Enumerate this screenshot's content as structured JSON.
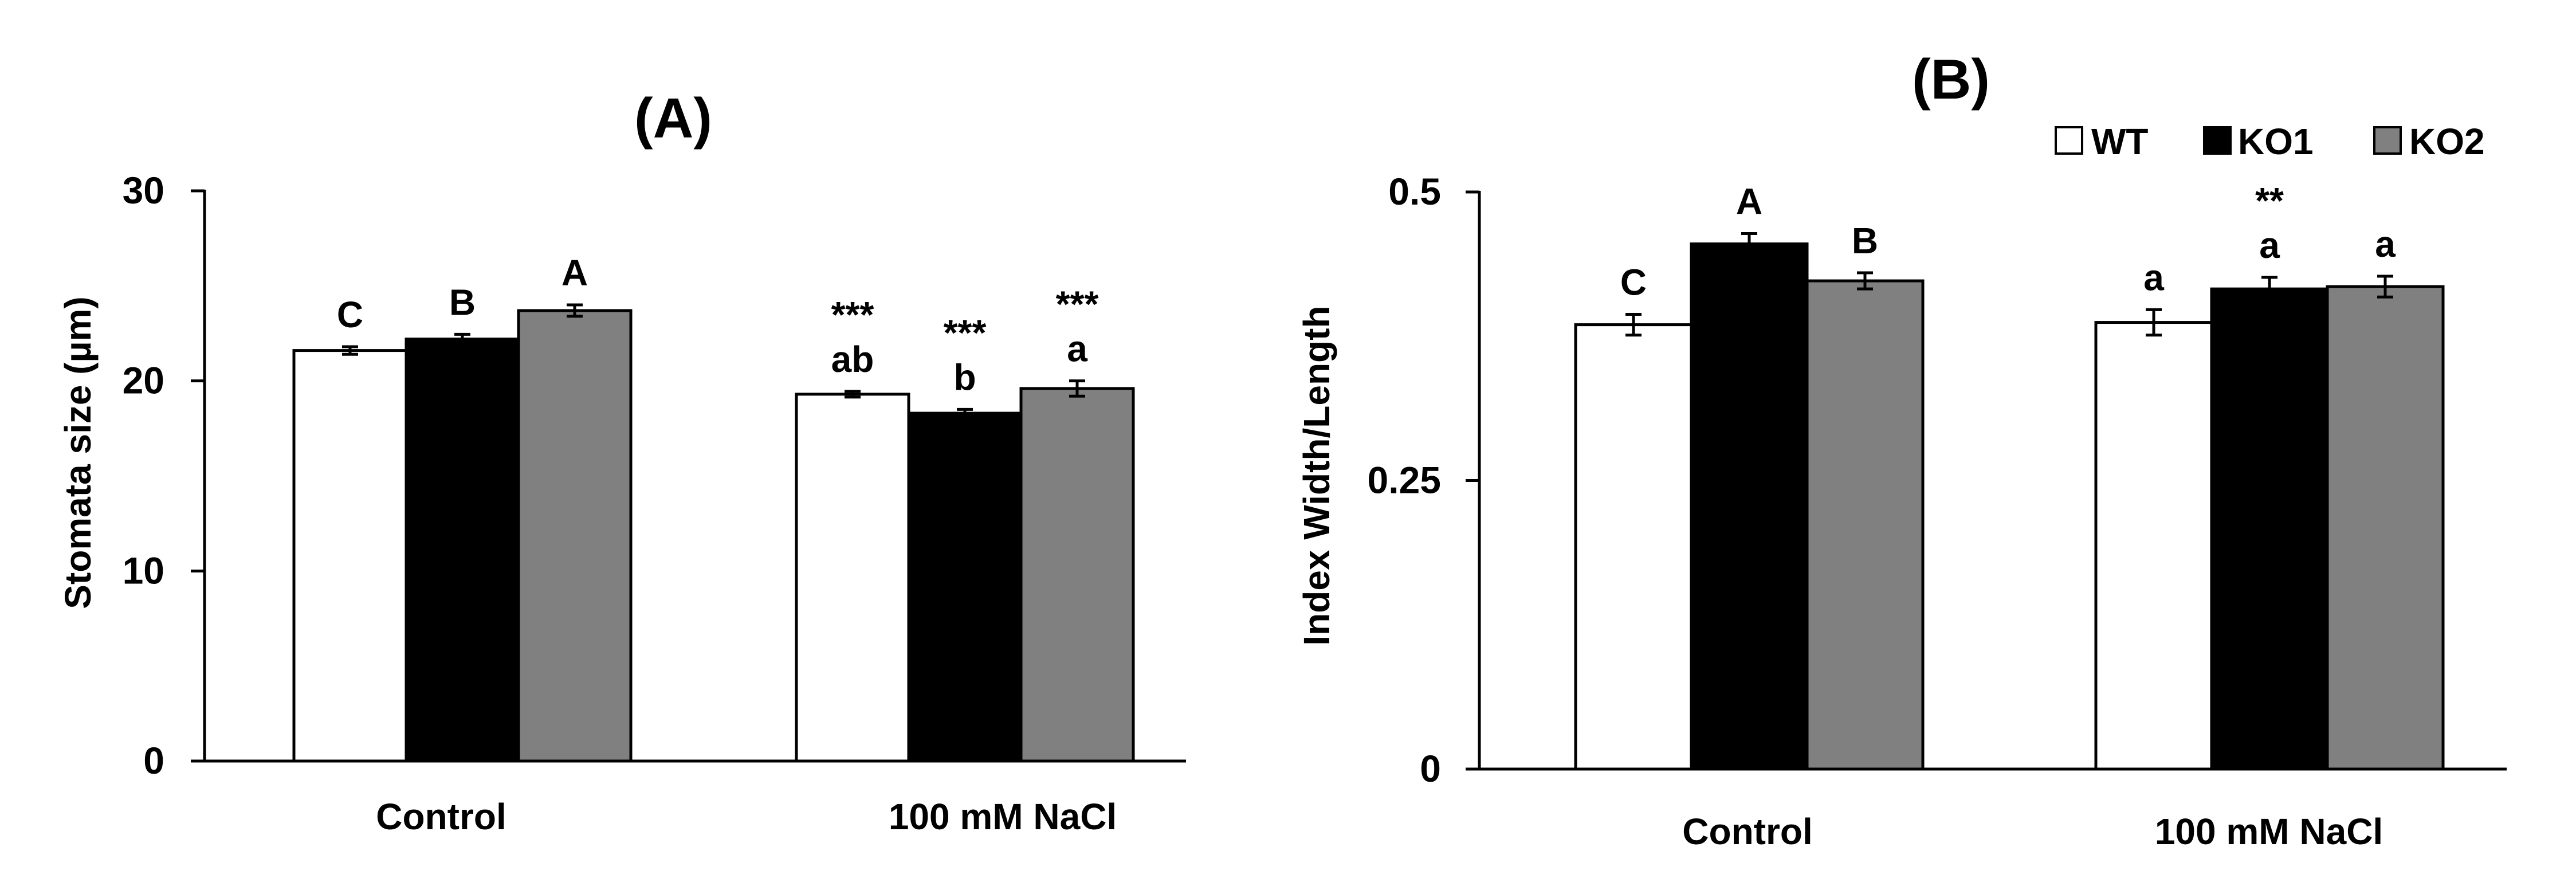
{
  "legend": [
    {
      "name": "WT",
      "color": "#ffffff"
    },
    {
      "name": "KO1",
      "color": "#000000"
    },
    {
      "name": "KO2",
      "color": "#808080"
    }
  ],
  "chart_data": [
    {
      "type": "bar",
      "title": "(A)",
      "xlabel": "",
      "ylabel": "Stomata size (µm)",
      "ylim": [
        0,
        30
      ],
      "yticks": [
        0,
        10,
        20,
        30
      ],
      "categories": [
        "Control",
        "100 mM NaCl"
      ],
      "series": [
        {
          "name": "WT",
          "color": "#ffffff",
          "values": [
            21.6,
            19.3
          ],
          "errors": [
            0.2,
            0.15
          ],
          "letters": [
            "C",
            "ab"
          ],
          "stars": [
            "",
            "***"
          ]
        },
        {
          "name": "KO1",
          "color": "#000000",
          "values": [
            22.2,
            18.3
          ],
          "errors": [
            0.25,
            0.2
          ],
          "letters": [
            "B",
            "b"
          ],
          "stars": [
            "",
            "***"
          ]
        },
        {
          "name": "KO2",
          "color": "#808080",
          "values": [
            23.7,
            19.6
          ],
          "errors": [
            0.3,
            0.4
          ],
          "letters": [
            "A",
            "a"
          ],
          "stars": [
            "",
            "***"
          ]
        }
      ]
    },
    {
      "type": "bar",
      "title": "(B)",
      "xlabel": "",
      "ylabel": "Index Width/Length",
      "ylim": [
        0,
        0.5
      ],
      "yticks": [
        0,
        0.25,
        0.5
      ],
      "ytick_labels": [
        "0",
        "0.25",
        "0.5"
      ],
      "categories": [
        "Control",
        "100 mM NaCl"
      ],
      "series": [
        {
          "name": "WT",
          "color": "#ffffff",
          "values": [
            0.385,
            0.387
          ],
          "errors": [
            0.009,
            0.011
          ],
          "letters": [
            "C",
            "a"
          ],
          "stars": [
            "",
            ""
          ]
        },
        {
          "name": "KO1",
          "color": "#000000",
          "values": [
            0.455,
            0.416
          ],
          "errors": [
            0.009,
            0.01
          ],
          "letters": [
            "A",
            "a"
          ],
          "stars": [
            "",
            "**"
          ]
        },
        {
          "name": "KO2",
          "color": "#808080",
          "values": [
            0.423,
            0.418
          ],
          "errors": [
            0.007,
            0.009
          ],
          "letters": [
            "B",
            "a"
          ],
          "stars": [
            "",
            ""
          ]
        }
      ]
    }
  ]
}
